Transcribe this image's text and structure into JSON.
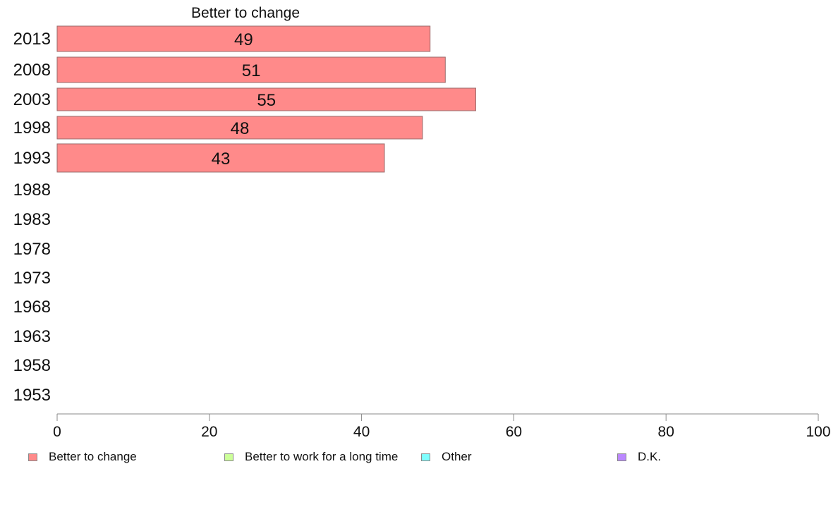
{
  "chart_data": {
    "type": "bar",
    "orientation": "horizontal",
    "title": "Better to change",
    "categories": [
      "2013",
      "2008",
      "2003",
      "1998",
      "1993",
      "1988",
      "1983",
      "1978",
      "1973",
      "1968",
      "1963",
      "1958",
      "1953"
    ],
    "series": [
      {
        "name": "Better to change",
        "color": "#ff8a8a",
        "values": [
          49,
          51,
          55,
          48,
          43,
          null,
          null,
          null,
          null,
          null,
          null,
          null,
          null
        ]
      }
    ],
    "xlim": [
      0,
      100
    ],
    "xticks": [
      0,
      20,
      40,
      60,
      80,
      100
    ],
    "grid": false,
    "legend_position": "bottom",
    "legend": [
      {
        "label": "Better to change",
        "color": "#ff8a8a"
      },
      {
        "label": "Better to work for a long time",
        "color": "#ccff99"
      },
      {
        "label": "Other",
        "color": "#7fffff"
      },
      {
        "label": "D.K.",
        "color": "#bb88ff"
      }
    ]
  }
}
